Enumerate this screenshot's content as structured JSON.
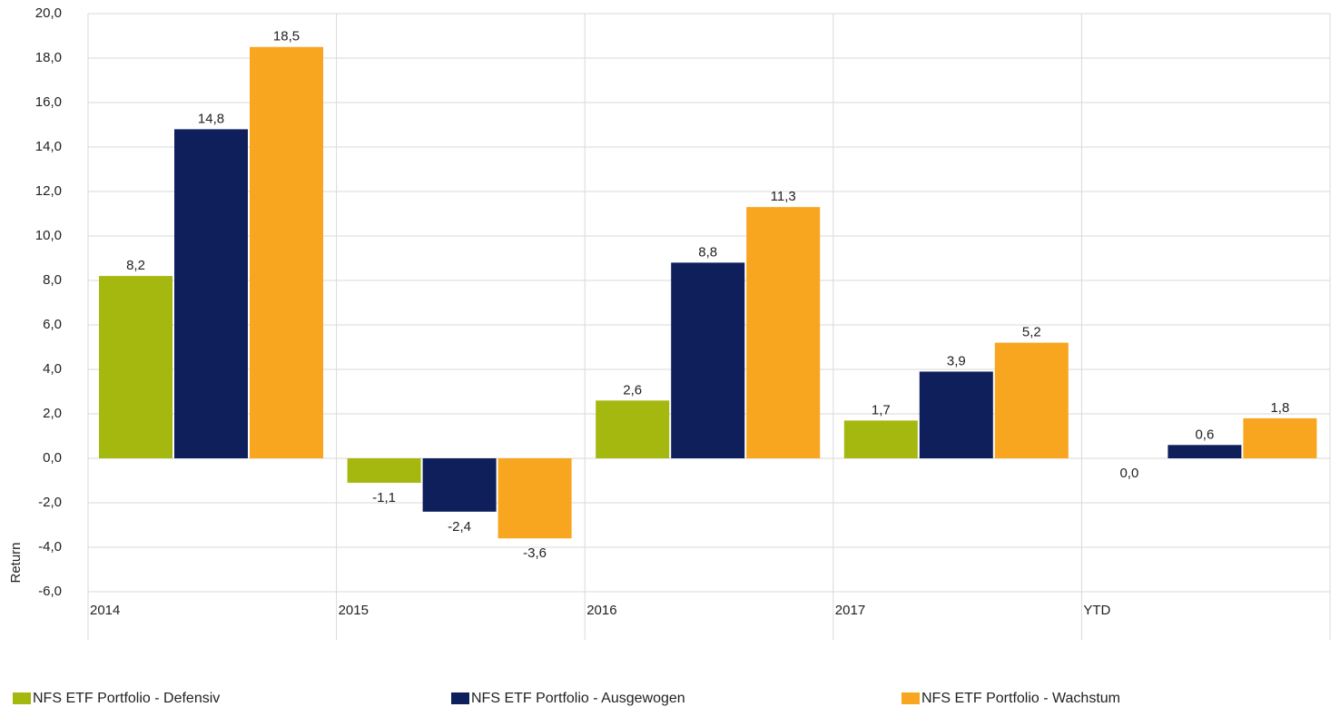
{
  "chart_data": {
    "type": "bar",
    "y_axis_label": "Return",
    "categories": [
      "2014",
      "2015",
      "2016",
      "2017",
      "YTD"
    ],
    "series": [
      {
        "name": "NFS ETF Portfolio - Defensiv",
        "color": "#a5b80f",
        "values": [
          8.2,
          -1.1,
          2.6,
          1.7,
          0.0
        ],
        "value_labels": [
          "8,2",
          "-1,1",
          "2,6",
          "1,7",
          "0,0"
        ]
      },
      {
        "name": "NFS ETF Portfolio - Ausgewogen",
        "color": "#0e1f5b",
        "values": [
          14.8,
          -2.4,
          8.8,
          3.9,
          0.6
        ],
        "value_labels": [
          "14,8",
          "-2,4",
          "8,8",
          "3,9",
          "0,6"
        ]
      },
      {
        "name": "NFS ETF Portfolio - Wachstum",
        "color": "#f8a51f",
        "values": [
          18.5,
          -3.6,
          11.3,
          5.2,
          1.8
        ],
        "value_labels": [
          "18,5",
          "-3,6",
          "11,3",
          "5,2",
          "1,8"
        ]
      }
    ],
    "ylim": [
      -6,
      20
    ],
    "yticks": [
      {
        "value": -6,
        "label": "-6,0"
      },
      {
        "value": -4,
        "label": "-4,0"
      },
      {
        "value": -2,
        "label": "-2,0"
      },
      {
        "value": 0,
        "label": "0,0"
      },
      {
        "value": 2,
        "label": "2,0"
      },
      {
        "value": 4,
        "label": "4,0"
      },
      {
        "value": 6,
        "label": "6,0"
      },
      {
        "value": 8,
        "label": "8,0"
      },
      {
        "value": 10,
        "label": "10,0"
      },
      {
        "value": 12,
        "label": "12,0"
      },
      {
        "value": 14,
        "label": "14,0"
      },
      {
        "value": 16,
        "label": "16,0"
      },
      {
        "value": 18,
        "label": "18,0"
      },
      {
        "value": 20,
        "label": "20,0"
      }
    ],
    "grid": true,
    "legend": "bottom"
  }
}
